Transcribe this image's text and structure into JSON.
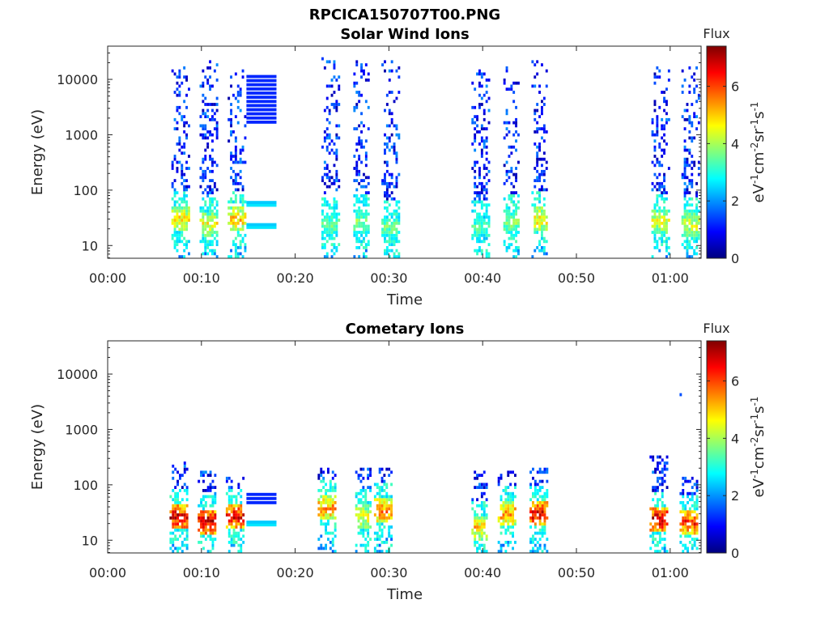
{
  "figure_title": "RPCICA150707T00.PNG",
  "colormap_stops": [
    "#00007f",
    "#0000ff",
    "#007fff",
    "#00ffff",
    "#7fff7f",
    "#ffff00",
    "#ff7f00",
    "#ff0000",
    "#7f0000"
  ],
  "chart_data": [
    {
      "type": "heatmap",
      "title": "Solar Wind Ions",
      "xlabel": "Time",
      "ylabel": "Energy (eV)",
      "x_ticks": [
        "00:00",
        "00:10",
        "00:20",
        "00:30",
        "00:40",
        "00:50",
        "01:00"
      ],
      "y_ticks": [
        "10",
        "100",
        "1000",
        "10000"
      ],
      "xlim_minutes": [
        0,
        63.3
      ],
      "ylim_log10": [
        0.77,
        4.6
      ],
      "y_scale": "log",
      "colorbar": {
        "label": "Flux",
        "unit": "eV-1cm-2sr-1s-1",
        "ticks": [
          "0",
          "2",
          "4",
          "6"
        ],
        "range": [
          0,
          7.4
        ]
      },
      "bursts": [
        {
          "t_start": 6.8,
          "t_end": 8.6,
          "peak_flux": 4.8,
          "peak_energy_log": 1.45,
          "top_energy_log": 4.2
        },
        {
          "t_start": 9.8,
          "t_end": 11.8,
          "peak_flux": 4.6,
          "peak_energy_log": 1.35,
          "top_energy_log": 4.3
        },
        {
          "t_start": 12.8,
          "t_end": 14.6,
          "peak_flux": 5.0,
          "peak_energy_log": 1.45,
          "top_energy_log": 4.2
        },
        {
          "t_start": 22.8,
          "t_end": 24.6,
          "peak_flux": 3.6,
          "peak_energy_log": 1.35,
          "top_energy_log": 4.4
        },
        {
          "t_start": 26.2,
          "t_end": 27.8,
          "peak_flux": 3.8,
          "peak_energy_log": 1.4,
          "top_energy_log": 4.4
        },
        {
          "t_start": 29.2,
          "t_end": 31.0,
          "peak_flux": 3.6,
          "peak_energy_log": 1.3,
          "top_energy_log": 4.3
        },
        {
          "t_start": 38.8,
          "t_end": 40.6,
          "peak_flux": 3.4,
          "peak_energy_log": 1.3,
          "top_energy_log": 4.2
        },
        {
          "t_start": 42.2,
          "t_end": 43.8,
          "peak_flux": 3.8,
          "peak_energy_log": 1.4,
          "top_energy_log": 4.2
        },
        {
          "t_start": 45.2,
          "t_end": 46.8,
          "peak_flux": 4.8,
          "peak_energy_log": 1.45,
          "top_energy_log": 4.3
        },
        {
          "t_start": 58.0,
          "t_end": 59.8,
          "peak_flux": 4.4,
          "peak_energy_log": 1.4,
          "top_energy_log": 4.2
        },
        {
          "t_start": 61.2,
          "t_end": 63.0,
          "peak_flux": 4.4,
          "peak_energy_log": 1.35,
          "top_energy_log": 4.2
        }
      ],
      "constant_segment": {
        "t_start": 14.8,
        "t_end": 18.0,
        "flux": 1.2,
        "high_band_log": [
          3.2,
          4.1
        ],
        "low_band_logs": [
          1.3,
          1.7
        ]
      }
    },
    {
      "type": "heatmap",
      "title": "Cometary Ions",
      "xlabel": "Time",
      "ylabel": "Energy (eV)",
      "x_ticks": [
        "00:00",
        "00:10",
        "00:20",
        "00:30",
        "00:40",
        "00:50",
        "01:00"
      ],
      "y_ticks": [
        "10",
        "100",
        "1000",
        "10000"
      ],
      "xlim_minutes": [
        0,
        63.3
      ],
      "ylim_log10": [
        0.77,
        4.6
      ],
      "y_scale": "log",
      "colorbar": {
        "label": "Flux",
        "unit": "eV-1cm-2sr-1s-1",
        "ticks": [
          "0",
          "2",
          "4",
          "6"
        ],
        "range": [
          0,
          7.4
        ]
      },
      "bursts": [
        {
          "t_start": 6.6,
          "t_end": 8.6,
          "peak_flux": 6.8,
          "peak_energy_log": 1.4,
          "top_energy_log": 2.4
        },
        {
          "t_start": 9.6,
          "t_end": 11.6,
          "peak_flux": 7.0,
          "peak_energy_log": 1.3,
          "top_energy_log": 2.2
        },
        {
          "t_start": 12.6,
          "t_end": 14.4,
          "peak_flux": 6.6,
          "peak_energy_log": 1.4,
          "top_energy_log": 2.1
        },
        {
          "t_start": 22.4,
          "t_end": 24.2,
          "peak_flux": 5.4,
          "peak_energy_log": 1.55,
          "top_energy_log": 2.3
        },
        {
          "t_start": 26.4,
          "t_end": 28.0,
          "peak_flux": 4.6,
          "peak_energy_log": 1.4,
          "top_energy_log": 2.3
        },
        {
          "t_start": 28.4,
          "t_end": 30.4,
          "peak_flux": 5.6,
          "peak_energy_log": 1.5,
          "top_energy_log": 2.3
        },
        {
          "t_start": 38.8,
          "t_end": 40.4,
          "peak_flux": 5.0,
          "peak_energy_log": 1.2,
          "top_energy_log": 2.2
        },
        {
          "t_start": 41.6,
          "t_end": 43.4,
          "peak_flux": 5.4,
          "peak_energy_log": 1.45,
          "top_energy_log": 2.2
        },
        {
          "t_start": 45.0,
          "t_end": 46.8,
          "peak_flux": 6.6,
          "peak_energy_log": 1.45,
          "top_energy_log": 2.3
        },
        {
          "t_start": 57.8,
          "t_end": 59.6,
          "peak_flux": 6.8,
          "peak_energy_log": 1.35,
          "top_energy_log": 2.5
        },
        {
          "t_start": 61.0,
          "t_end": 63.0,
          "peak_flux": 6.2,
          "peak_energy_log": 1.3,
          "top_energy_log": 2.1
        }
      ],
      "constant_segment": {
        "t_start": 14.8,
        "t_end": 18.0,
        "flux": 1.2,
        "high_band_log": [
          1.65,
          1.85
        ],
        "low_band_logs": [
          1.25
        ]
      },
      "isolated_points": [
        {
          "t": 61.0,
          "energy_log": 3.6,
          "flux": 1.5
        }
      ]
    }
  ]
}
